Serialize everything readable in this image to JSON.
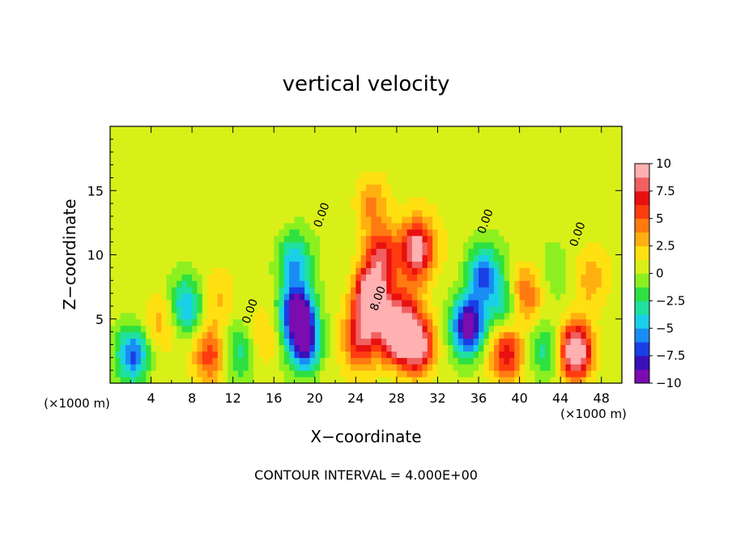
{
  "chart_data": {
    "type": "heatmap",
    "title": "vertical velocity",
    "xlabel": "X−coordinate",
    "ylabel": "Z−coordinate",
    "x_unit_left": "(×1000 m)",
    "x_unit_right": "(×1000 m)",
    "footer": "CONTOUR INTERVAL = 4.000E+00",
    "xlim": [
      0,
      50
    ],
    "ylim": [
      0,
      20
    ],
    "x_ticks": [
      4,
      8,
      12,
      16,
      20,
      24,
      28,
      32,
      36,
      40,
      44,
      48
    ],
    "x_tick_labels": [
      "4",
      "8",
      "12",
      "16",
      "20",
      "24",
      "28",
      "32",
      "36",
      "40",
      "44",
      "48"
    ],
    "y_ticks": [
      5,
      10,
      15
    ],
    "y_tick_labels": [
      "5",
      "10",
      "15"
    ],
    "contour_labels": [
      {
        "text": "0.00",
        "x": 21,
        "y": 13
      },
      {
        "text": "0.00",
        "x": 14,
        "y": 5.5
      },
      {
        "text": "8.00",
        "x": 26.5,
        "y": 6.5
      },
      {
        "text": "0.00",
        "x": 37,
        "y": 12.5
      },
      {
        "text": "0.00",
        "x": 46,
        "y": 11.5
      }
    ],
    "colorbar": {
      "min": -10,
      "max": 10,
      "ticks": [
        10,
        7.5,
        5,
        2.5,
        0,
        -2.5,
        -5,
        -7.5,
        -10
      ],
      "tick_labels": [
        "10",
        "7.5",
        "5",
        "2.5",
        "0",
        "−2.5",
        "−5",
        "−7.5",
        "−10"
      ],
      "colors": [
        "#7a0cb0",
        "#3a10b8",
        "#1a3fe6",
        "#1a8cf5",
        "#1ad0e8",
        "#20e0a0",
        "#2ee040",
        "#8cf020",
        "#d8f018",
        "#ffe010",
        "#ffb010",
        "#ff7a10",
        "#ff3c10",
        "#e81010",
        "#f06060",
        "#ffb0b0"
      ]
    },
    "features": [
      {
        "x": 2.2,
        "z": 2.2,
        "w": -7.5
      },
      {
        "x": 7.4,
        "z": 6.0,
        "w": -6.0
      },
      {
        "x": 9.8,
        "z": 2.2,
        "w": 5.5
      },
      {
        "x": 10.5,
        "z": 6.5,
        "w": 2.0
      },
      {
        "x": 12.5,
        "z": 2.5,
        "w": -3.5
      },
      {
        "x": 18.3,
        "z": 5.5,
        "w": -11.0
      },
      {
        "x": 18.0,
        "z": 9.5,
        "w": -5.5
      },
      {
        "x": 19.0,
        "z": 3.0,
        "w": -8.5
      },
      {
        "x": 25.5,
        "z": 6.8,
        "w": 12.0
      },
      {
        "x": 24.5,
        "z": 3.5,
        "w": 7.0
      },
      {
        "x": 26.5,
        "z": 10.0,
        "w": 6.5
      },
      {
        "x": 27.8,
        "z": 4.0,
        "w": 11.0
      },
      {
        "x": 30.0,
        "z": 10.5,
        "w": 9.0
      },
      {
        "x": 30.0,
        "z": 3.0,
        "w": 10.5
      },
      {
        "x": 29.0,
        "z": 6.5,
        "w": 3.0
      },
      {
        "x": 25.5,
        "z": 14.0,
        "w": 3.5
      },
      {
        "x": 35.0,
        "z": 4.5,
        "w": -11.0
      },
      {
        "x": 36.5,
        "z": 8.5,
        "w": -7.0
      },
      {
        "x": 38.5,
        "z": 6.0,
        "w": -4.5
      },
      {
        "x": 38.7,
        "z": 2.5,
        "w": 6.5
      },
      {
        "x": 40.5,
        "z": 7.0,
        "w": 5.0
      },
      {
        "x": 42.5,
        "z": 2.5,
        "w": -4.0
      },
      {
        "x": 45.5,
        "z": 2.5,
        "w": 11.0
      },
      {
        "x": 47.0,
        "z": 8.0,
        "w": 2.5
      },
      {
        "x": 43.5,
        "z": 8.5,
        "w": -1.5
      },
      {
        "x": 15.0,
        "z": 3.5,
        "w": 2.5
      },
      {
        "x": 5.0,
        "z": 5.0,
        "w": 2.5
      }
    ]
  }
}
